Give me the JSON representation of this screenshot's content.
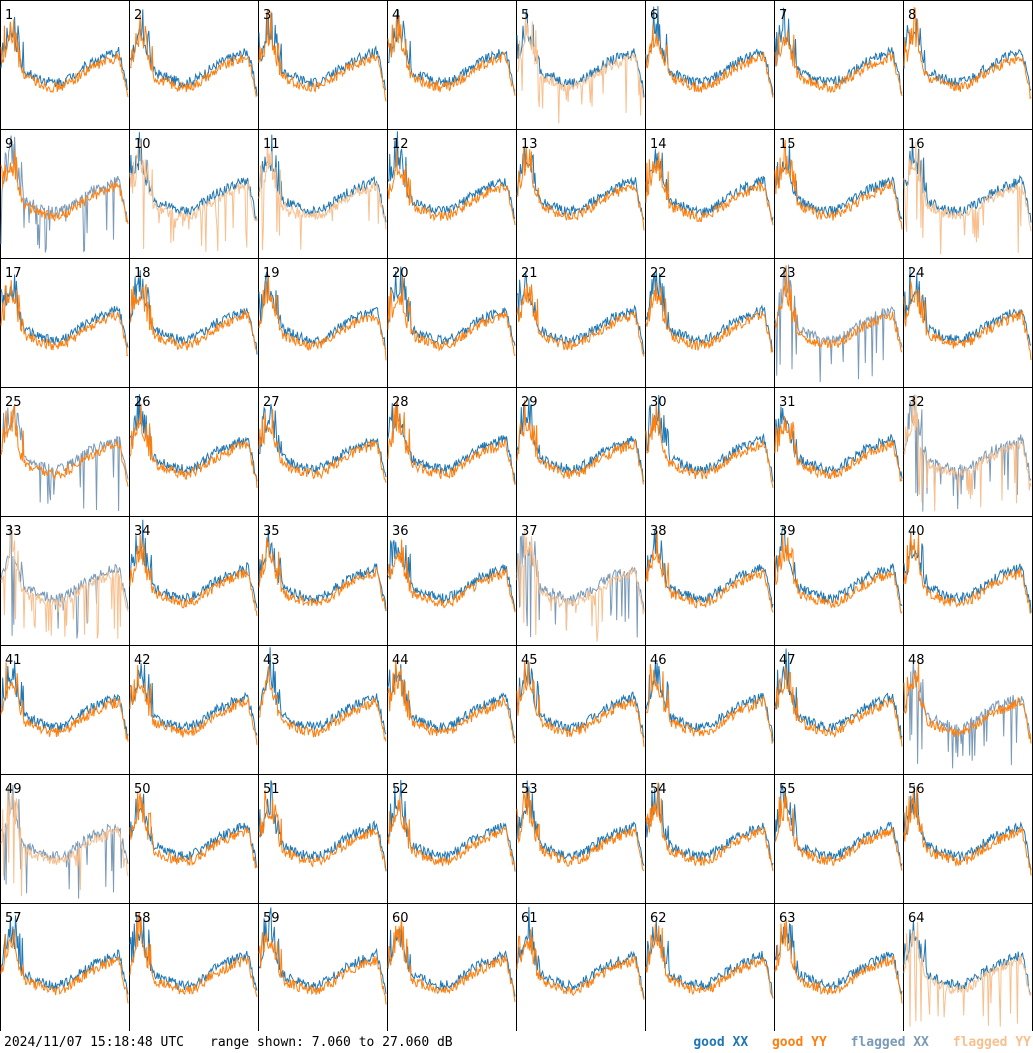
{
  "chart_data": {
    "type": "line",
    "layout": "8x8 small multiples (antenna spectra)",
    "panels": [
      {
        "label": "1",
        "xx": "good",
        "yy": "good"
      },
      {
        "label": "2",
        "xx": "good",
        "yy": "good"
      },
      {
        "label": "3",
        "xx": "good",
        "yy": "good"
      },
      {
        "label": "4",
        "xx": "good",
        "yy": "good"
      },
      {
        "label": "5",
        "xx": "good",
        "yy": "flagged"
      },
      {
        "label": "6",
        "xx": "good",
        "yy": "good"
      },
      {
        "label": "7",
        "xx": "good",
        "yy": "good"
      },
      {
        "label": "8",
        "xx": "good",
        "yy": "good"
      },
      {
        "label": "9",
        "xx": "flagged",
        "yy": "good"
      },
      {
        "label": "10",
        "xx": "good",
        "yy": "flagged"
      },
      {
        "label": "11",
        "xx": "good",
        "yy": "flagged"
      },
      {
        "label": "12",
        "xx": "good",
        "yy": "good"
      },
      {
        "label": "13",
        "xx": "good",
        "yy": "good"
      },
      {
        "label": "14",
        "xx": "good",
        "yy": "good"
      },
      {
        "label": "15",
        "xx": "good",
        "yy": "good"
      },
      {
        "label": "16",
        "xx": "good",
        "yy": "flagged"
      },
      {
        "label": "17",
        "xx": "good",
        "yy": "good"
      },
      {
        "label": "18",
        "xx": "good",
        "yy": "good"
      },
      {
        "label": "19",
        "xx": "good",
        "yy": "good"
      },
      {
        "label": "20",
        "xx": "good",
        "yy": "good"
      },
      {
        "label": "21",
        "xx": "good",
        "yy": "good"
      },
      {
        "label": "22",
        "xx": "good",
        "yy": "good"
      },
      {
        "label": "23",
        "xx": "flagged",
        "yy": "good"
      },
      {
        "label": "24",
        "xx": "good",
        "yy": "good"
      },
      {
        "label": "25",
        "xx": "flagged",
        "yy": "good"
      },
      {
        "label": "26",
        "xx": "good",
        "yy": "good"
      },
      {
        "label": "27",
        "xx": "good",
        "yy": "good"
      },
      {
        "label": "28",
        "xx": "good",
        "yy": "good"
      },
      {
        "label": "29",
        "xx": "good",
        "yy": "good"
      },
      {
        "label": "30",
        "xx": "good",
        "yy": "good"
      },
      {
        "label": "31",
        "xx": "good",
        "yy": "good"
      },
      {
        "label": "32",
        "xx": "flagged",
        "yy": "flagged"
      },
      {
        "label": "33",
        "xx": "flagged",
        "yy": "flagged"
      },
      {
        "label": "34",
        "xx": "good",
        "yy": "good"
      },
      {
        "label": "35",
        "xx": "good",
        "yy": "good"
      },
      {
        "label": "36",
        "xx": "good",
        "yy": "good"
      },
      {
        "label": "37",
        "xx": "flagged",
        "yy": "flagged"
      },
      {
        "label": "38",
        "xx": "good",
        "yy": "good"
      },
      {
        "label": "39",
        "xx": "good",
        "yy": "good"
      },
      {
        "label": "40",
        "xx": "good",
        "yy": "good"
      },
      {
        "label": "41",
        "xx": "good",
        "yy": "good"
      },
      {
        "label": "42",
        "xx": "good",
        "yy": "good"
      },
      {
        "label": "43",
        "xx": "good",
        "yy": "good"
      },
      {
        "label": "44",
        "xx": "good",
        "yy": "good"
      },
      {
        "label": "45",
        "xx": "good",
        "yy": "good"
      },
      {
        "label": "46",
        "xx": "good",
        "yy": "good"
      },
      {
        "label": "47",
        "xx": "good",
        "yy": "good"
      },
      {
        "label": "48",
        "xx": "flagged",
        "yy": "good"
      },
      {
        "label": "49",
        "xx": "flagged",
        "yy": "flagged"
      },
      {
        "label": "50",
        "xx": "good",
        "yy": "good"
      },
      {
        "label": "51",
        "xx": "good",
        "yy": "good"
      },
      {
        "label": "52",
        "xx": "good",
        "yy": "good"
      },
      {
        "label": "53",
        "xx": "good",
        "yy": "good"
      },
      {
        "label": "54",
        "xx": "good",
        "yy": "good"
      },
      {
        "label": "55",
        "xx": "good",
        "yy": "good"
      },
      {
        "label": "56",
        "xx": "good",
        "yy": "good"
      },
      {
        "label": "57",
        "xx": "good",
        "yy": "good"
      },
      {
        "label": "58",
        "xx": "good",
        "yy": "good"
      },
      {
        "label": "59",
        "xx": "good",
        "yy": "good"
      },
      {
        "label": "60",
        "xx": "good",
        "yy": "good"
      },
      {
        "label": "61",
        "xx": "good",
        "yy": "good"
      },
      {
        "label": "62",
        "xx": "good",
        "yy": "good"
      },
      {
        "label": "63",
        "xx": "good",
        "yy": "good"
      },
      {
        "label": "64",
        "xx": "good",
        "yy": "flagged"
      }
    ],
    "ylim": [
      7.06,
      27.06
    ],
    "grid": false,
    "legend_position": "bottom-right"
  },
  "footer": {
    "timestamp": "2024/11/07 15:18:48 UTC",
    "range_text": "range shown: 7.060 to 27.060 dB"
  },
  "legend": [
    {
      "label": "good XX",
      "color": "#1f77b4"
    },
    {
      "label": "good YY",
      "color": "#ff7f0e"
    },
    {
      "label": "flagged XX",
      "color": "#7a9ab8"
    },
    {
      "label": "flagged YY",
      "color": "#f8c08f"
    }
  ],
  "colors": {
    "good_xx": "#1f77b4",
    "good_yy": "#ff7f0e",
    "flagged_xx": "#7a9ab8",
    "flagged_yy": "#f8c08f"
  }
}
